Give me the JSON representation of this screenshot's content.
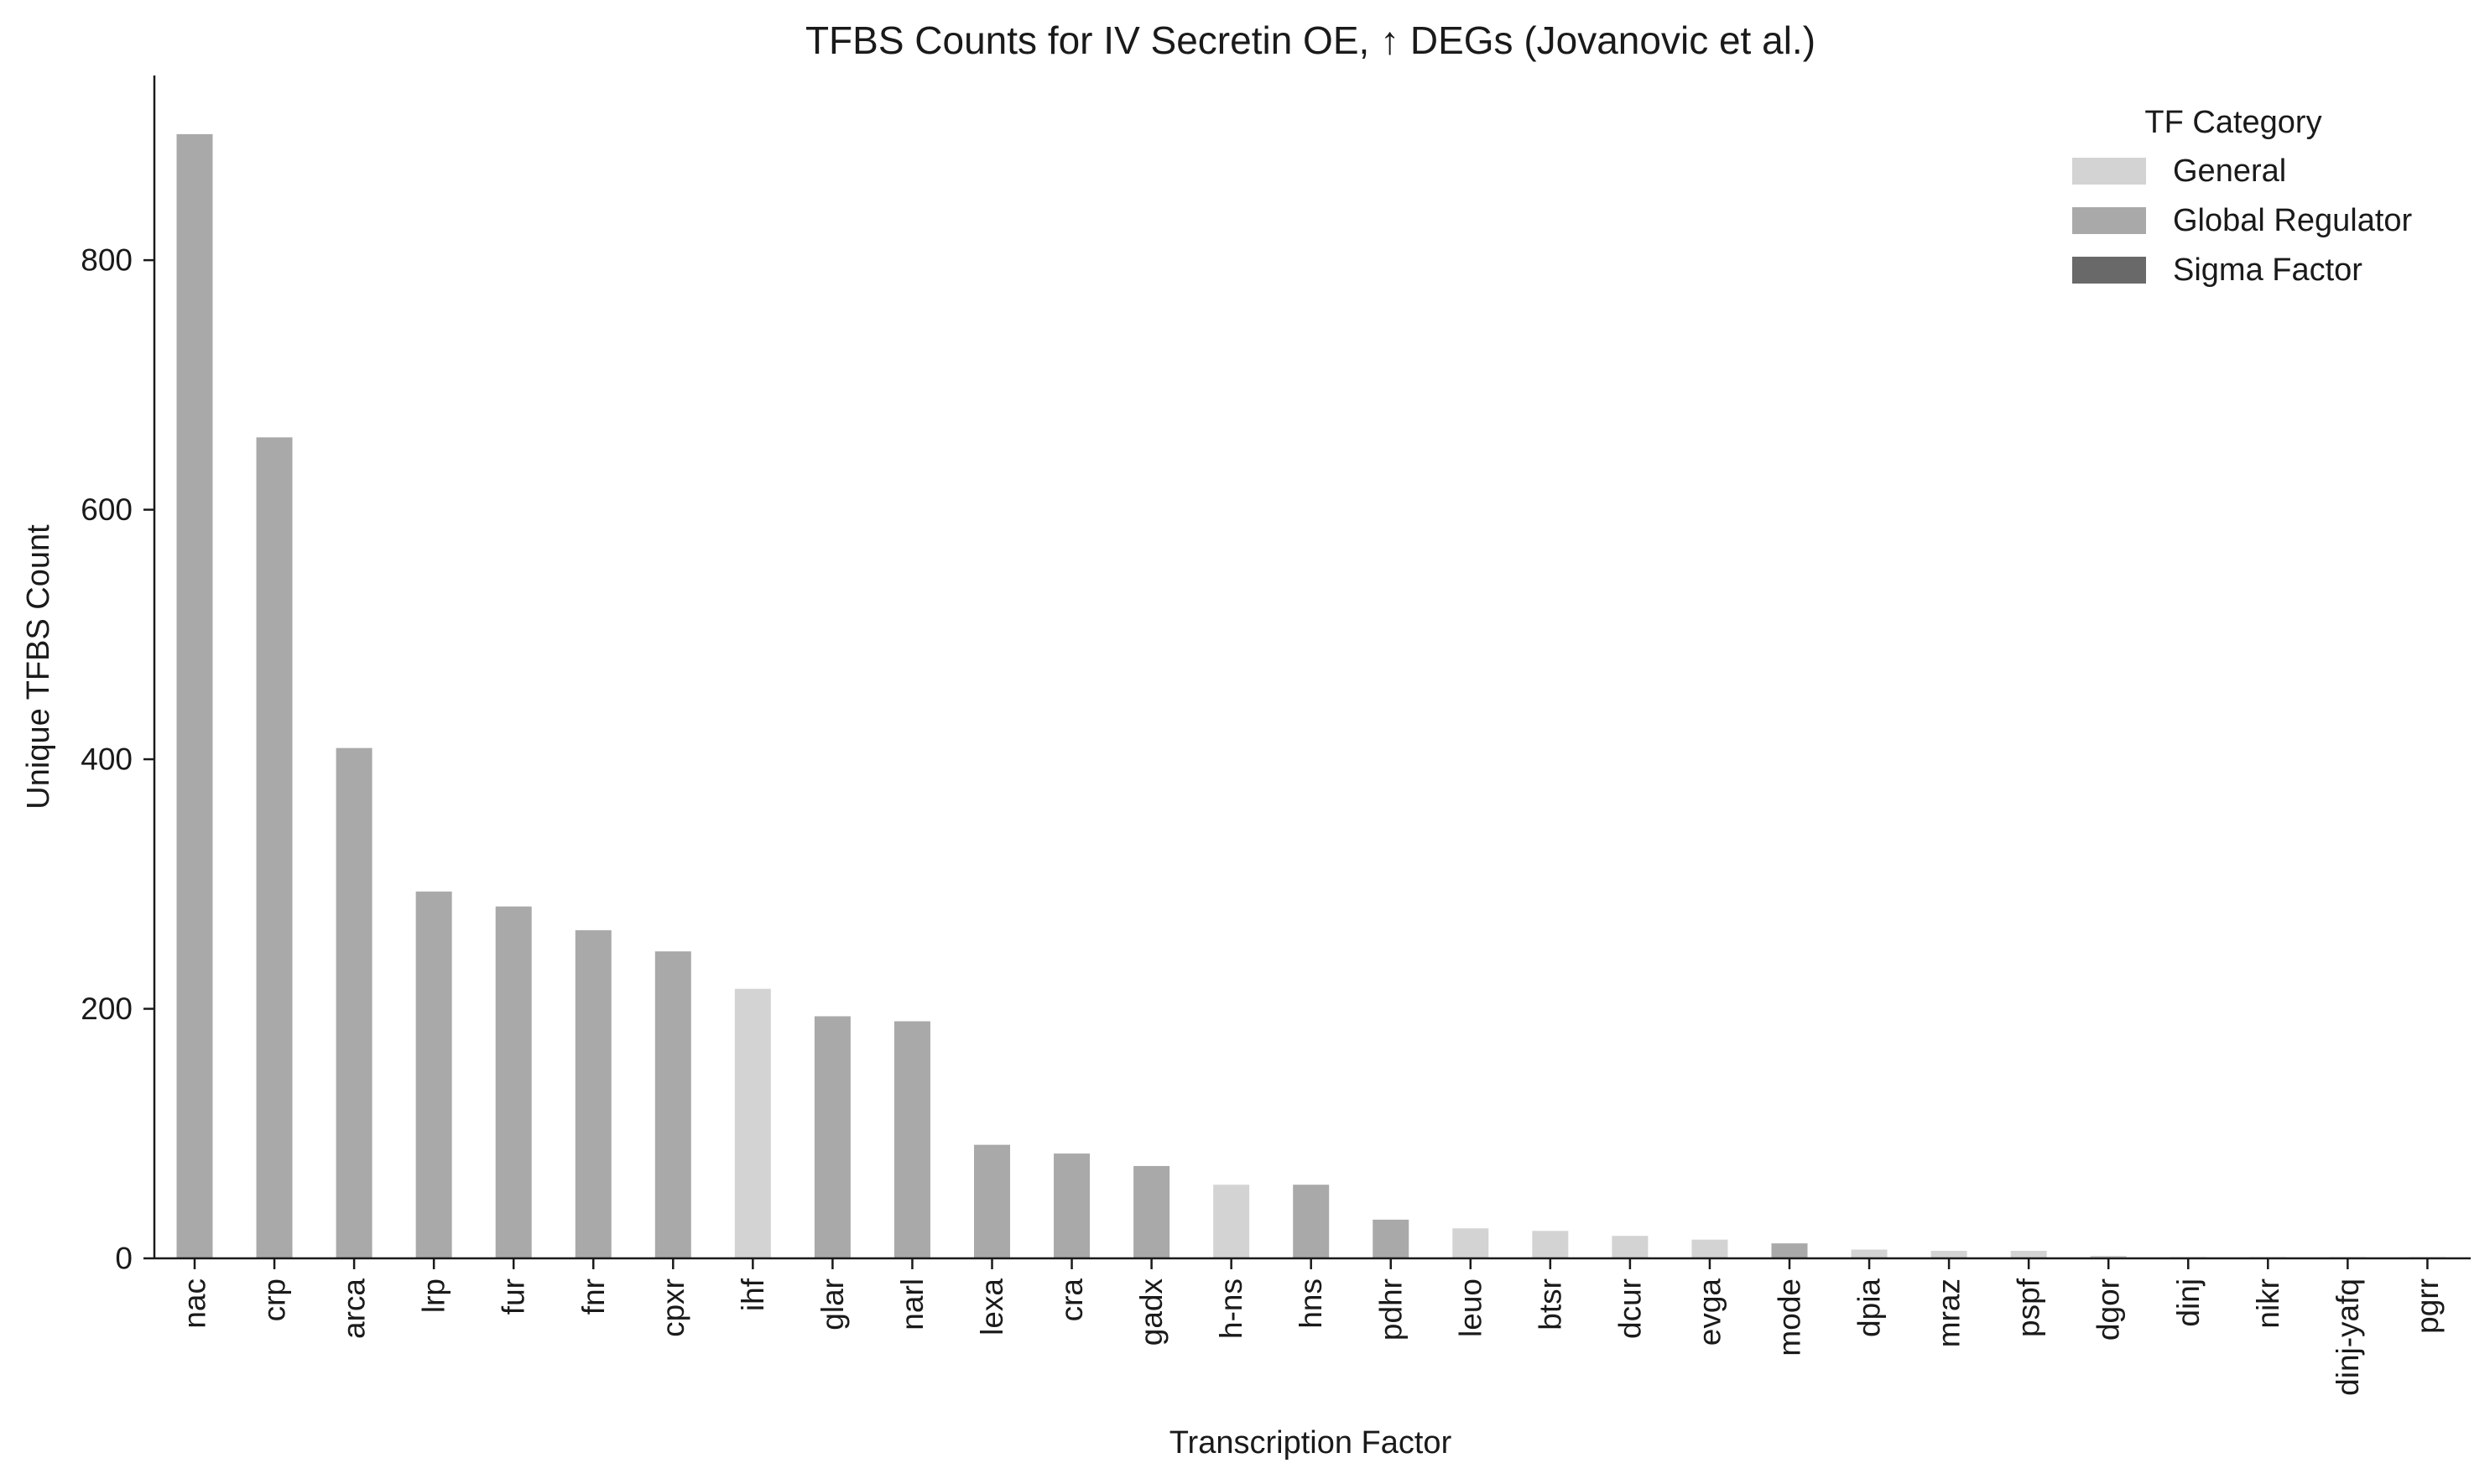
{
  "chart_data": {
    "type": "bar",
    "title": "TFBS Counts for IV Secretin OE, ↑ DEGs (Jovanovic et al.)",
    "xlabel": "Transcription Factor",
    "ylabel": "Unique TFBS Count",
    "ylim": [
      0,
      948
    ],
    "yticks": [
      0,
      200,
      400,
      600,
      800
    ],
    "grid": false,
    "legend": {
      "title": "TF Category",
      "placement": "top-right",
      "entries": [
        {
          "name": "General",
          "color": "#d3d3d3"
        },
        {
          "name": "Global Regulator",
          "color": "#a9a9a9"
        },
        {
          "name": "Sigma Factor",
          "color": "#696969"
        }
      ]
    },
    "categories": [
      "nac",
      "crp",
      "arca",
      "lrp",
      "fur",
      "fnr",
      "cpxr",
      "ihf",
      "glar",
      "narl",
      "lexa",
      "cra",
      "gadx",
      "h-ns",
      "hns",
      "pdhr",
      "leuo",
      "btsr",
      "dcur",
      "evga",
      "mode",
      "dpia",
      "mraz",
      "pspf",
      "dgor",
      "dinj",
      "nikr",
      "dinj-yafq",
      "pgrr"
    ],
    "values": [
      901,
      658,
      409,
      294,
      282,
      263,
      246,
      216,
      194,
      190,
      91,
      84,
      74,
      59,
      59,
      31,
      24,
      22,
      18,
      15,
      12,
      7,
      6,
      6,
      2,
      1,
      1,
      1,
      1
    ],
    "bar_categories": [
      "Global Regulator",
      "Global Regulator",
      "Global Regulator",
      "Global Regulator",
      "Global Regulator",
      "Global Regulator",
      "Global Regulator",
      "General",
      "Global Regulator",
      "Global Regulator",
      "Global Regulator",
      "Global Regulator",
      "Global Regulator",
      "General",
      "Global Regulator",
      "Global Regulator",
      "General",
      "General",
      "General",
      "General",
      "Global Regulator",
      "General",
      "General",
      "General",
      "General",
      "General",
      "General",
      "General",
      "General"
    ]
  }
}
